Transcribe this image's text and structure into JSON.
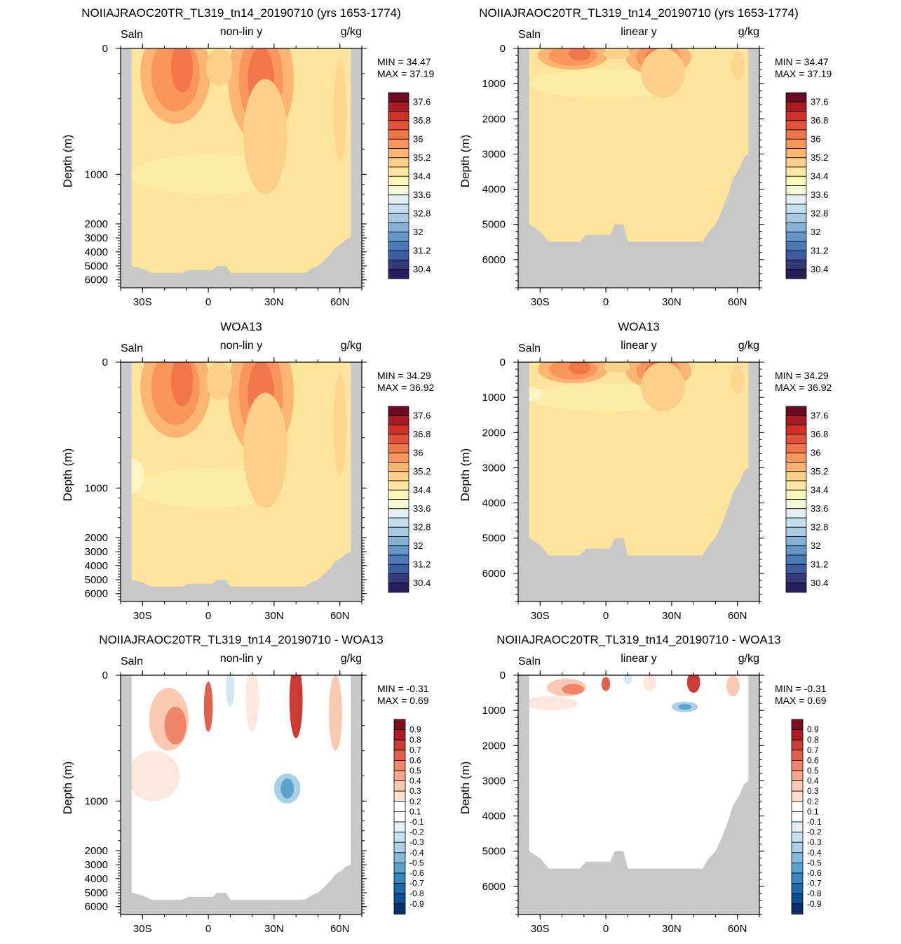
{
  "colors": {
    "land": "#c8c8c8",
    "ocean_base": "#fde49c",
    "sal_levels": [
      "#2a1d5c",
      "#323a7c",
      "#3b5ca0",
      "#4a7ab7",
      "#6497c7",
      "#86b1d6",
      "#a8cbe3",
      "#c6dfee",
      "#e1eff2",
      "#f5f9d6",
      "#fdf6b8",
      "#fee6a2",
      "#fdd089",
      "#fbb471",
      "#f8965c",
      "#f1764b",
      "#e35238",
      "#cf3026",
      "#a91c24",
      "#6b0a24"
    ],
    "diff_levels": [
      "#08306b",
      "#0b4d94",
      "#1c6aae",
      "#3787c0",
      "#5aa2cf",
      "#82bbdb",
      "#a9d0e6",
      "#c9e1ef",
      "#e3eef6",
      "#ffffff",
      "#ffffff",
      "#fde0d2",
      "#fbc8b2",
      "#f6a88c",
      "#ef8669",
      "#e0604d",
      "#cb3b33",
      "#ae1c23",
      "#7f0d1b"
    ]
  },
  "panels": [
    {
      "id": "r1c1",
      "title": "NOIIAJRAOC20TR_TL319_tn14_20190710 (yrs 1653-1774)",
      "left_label": "Saln",
      "center_label": "non-lin y",
      "right_label": "g/kg",
      "ylabel": "Depth (m)",
      "min_label": "MIN =  34.47",
      "max_label": "MAX =  37.19"
    },
    {
      "id": "r1c2",
      "title": "NOIIAJRAOC20TR_TL319_tn14_20190710 (yrs 1653-1774)",
      "left_label": "Saln",
      "center_label": "linear y",
      "right_label": "g/kg",
      "ylabel": "Depth (m)",
      "min_label": "MIN =  34.47",
      "max_label": "MAX =  37.19"
    },
    {
      "id": "r2c1",
      "title": "WOA13",
      "left_label": "Saln",
      "center_label": "non-lin y",
      "right_label": "g/kg",
      "ylabel": "Depth (m)",
      "min_label": "MIN =  34.29",
      "max_label": "MAX =  36.92"
    },
    {
      "id": "r2c2",
      "title": "WOA13",
      "left_label": "Saln",
      "center_label": "linear y",
      "right_label": "g/kg",
      "ylabel": "Depth (m)",
      "min_label": "MIN =  34.29",
      "max_label": "MAX =  36.92"
    },
    {
      "id": "r3c1",
      "title": "NOIIAJRAOC20TR_TL319_tn14_20190710 - WOA13",
      "left_label": "Saln",
      "center_label": "non-lin y",
      "right_label": "g/kg",
      "ylabel": "Depth (m)",
      "min_label": "MIN =  -0.31",
      "max_label": "MAX =   0.69"
    },
    {
      "id": "r3c2",
      "title": "NOIIAJRAOC20TR_TL319_tn14_20190710 - WOA13",
      "left_label": "Saln",
      "center_label": "linear y",
      "right_label": "g/kg",
      "ylabel": "Depth (m)",
      "min_label": "MIN =  -0.31",
      "max_label": "MAX =   0.69"
    }
  ],
  "chart_data": [
    {
      "type": "heatmap",
      "panel": "r1c1",
      "title": "NOIIAJRAOC20TR_TL319_tn14_20190710 (yrs 1653-1774)",
      "ylabel": "Depth (m)",
      "x_ticks": [
        "30S",
        "0",
        "30N",
        "60N"
      ],
      "x_tick_values": [
        -30,
        0,
        30,
        60
      ],
      "xlim": [
        -40,
        70
      ],
      "y_scale": "non-linear",
      "y_ticks": [
        "0",
        "1000",
        "2000",
        "3000",
        "4000",
        "5000",
        "6000"
      ],
      "y_tick_values": [
        0,
        1000,
        2000,
        3000,
        4000,
        5000,
        6000
      ],
      "ylim": [
        6500,
        0
      ],
      "min": 34.47,
      "max": 37.19,
      "units": "g/kg",
      "colorbar_labels": [
        "37.6",
        "36.8",
        "36",
        "35.2",
        "34.4",
        "33.6",
        "32.8",
        "32",
        "31.2",
        "30.4"
      ]
    },
    {
      "type": "heatmap",
      "panel": "r1c2",
      "title": "NOIIAJRAOC20TR_TL319_tn14_20190710 (yrs 1653-1774)",
      "ylabel": "Depth (m)",
      "x_ticks": [
        "30S",
        "0",
        "30N",
        "60N"
      ],
      "x_tick_values": [
        -30,
        0,
        30,
        60
      ],
      "xlim": [
        -40,
        70
      ],
      "y_scale": "linear",
      "y_ticks": [
        "0",
        "1000",
        "2000",
        "3000",
        "4000",
        "5000",
        "6000"
      ],
      "y_tick_values": [
        0,
        1000,
        2000,
        3000,
        4000,
        5000,
        6000
      ],
      "ylim": [
        6800,
        0
      ],
      "min": 34.47,
      "max": 37.19,
      "units": "g/kg",
      "colorbar_labels": [
        "37.6",
        "36.8",
        "36",
        "35.2",
        "34.4",
        "33.6",
        "32.8",
        "32",
        "31.2",
        "30.4"
      ]
    },
    {
      "type": "heatmap",
      "panel": "r2c1",
      "title": "WOA13",
      "ylabel": "Depth (m)",
      "x_ticks": [
        "30S",
        "0",
        "30N",
        "60N"
      ],
      "x_tick_values": [
        -30,
        0,
        30,
        60
      ],
      "xlim": [
        -40,
        70
      ],
      "y_scale": "non-linear",
      "y_ticks": [
        "0",
        "1000",
        "2000",
        "3000",
        "4000",
        "5000",
        "6000"
      ],
      "y_tick_values": [
        0,
        1000,
        2000,
        3000,
        4000,
        5000,
        6000
      ],
      "ylim": [
        6500,
        0
      ],
      "min": 34.29,
      "max": 36.92,
      "units": "g/kg",
      "colorbar_labels": [
        "37.6",
        "36.8",
        "36",
        "35.2",
        "34.4",
        "33.6",
        "32.8",
        "32",
        "31.2",
        "30.4"
      ]
    },
    {
      "type": "heatmap",
      "panel": "r2c2",
      "title": "WOA13",
      "ylabel": "Depth (m)",
      "x_ticks": [
        "30S",
        "0",
        "30N",
        "60N"
      ],
      "x_tick_values": [
        -30,
        0,
        30,
        60
      ],
      "xlim": [
        -40,
        70
      ],
      "y_scale": "linear",
      "y_ticks": [
        "0",
        "1000",
        "2000",
        "3000",
        "4000",
        "5000",
        "6000"
      ],
      "y_tick_values": [
        0,
        1000,
        2000,
        3000,
        4000,
        5000,
        6000
      ],
      "ylim": [
        6800,
        0
      ],
      "min": 34.29,
      "max": 36.92,
      "units": "g/kg",
      "colorbar_labels": [
        "37.6",
        "36.8",
        "36",
        "35.2",
        "34.4",
        "33.6",
        "32.8",
        "32",
        "31.2",
        "30.4"
      ]
    },
    {
      "type": "heatmap",
      "panel": "r3c1",
      "title": "NOIIAJRAOC20TR_TL319_tn14_20190710 - WOA13",
      "ylabel": "Depth (m)",
      "x_ticks": [
        "30S",
        "0",
        "30N",
        "60N"
      ],
      "x_tick_values": [
        -30,
        0,
        30,
        60
      ],
      "xlim": [
        -40,
        70
      ],
      "y_scale": "non-linear",
      "y_ticks": [
        "0",
        "1000",
        "2000",
        "3000",
        "4000",
        "5000",
        "6000"
      ],
      "y_tick_values": [
        0,
        1000,
        2000,
        3000,
        4000,
        5000,
        6000
      ],
      "ylim": [
        6500,
        0
      ],
      "min": -0.31,
      "max": 0.69,
      "units": "g/kg",
      "colorbar_labels": [
        "0.9",
        "0.8",
        "0.7",
        "0.6",
        "0.5",
        "0.4",
        "0.3",
        "0.2",
        "0.1",
        "-0.1",
        "-0.2",
        "-0.3",
        "-0.4",
        "-0.5",
        "-0.6",
        "-0.7",
        "-0.8",
        "-0.9"
      ]
    },
    {
      "type": "heatmap",
      "panel": "r3c2",
      "title": "NOIIAJRAOC20TR_TL319_tn14_20190710 - WOA13",
      "ylabel": "Depth (m)",
      "x_ticks": [
        "30S",
        "0",
        "30N",
        "60N"
      ],
      "x_tick_values": [
        -30,
        0,
        30,
        60
      ],
      "xlim": [
        -40,
        70
      ],
      "y_scale": "linear",
      "y_ticks": [
        "0",
        "1000",
        "2000",
        "3000",
        "4000",
        "5000",
        "6000"
      ],
      "y_tick_values": [
        0,
        1000,
        2000,
        3000,
        4000,
        5000,
        6000
      ],
      "ylim": [
        6800,
        0
      ],
      "min": -0.31,
      "max": 0.69,
      "units": "g/kg",
      "colorbar_labels": [
        "0.9",
        "0.8",
        "0.7",
        "0.6",
        "0.5",
        "0.4",
        "0.3",
        "0.2",
        "0.1",
        "-0.1",
        "-0.2",
        "-0.3",
        "-0.4",
        "-0.5",
        "-0.6",
        "-0.7",
        "-0.8",
        "-0.9"
      ]
    }
  ]
}
